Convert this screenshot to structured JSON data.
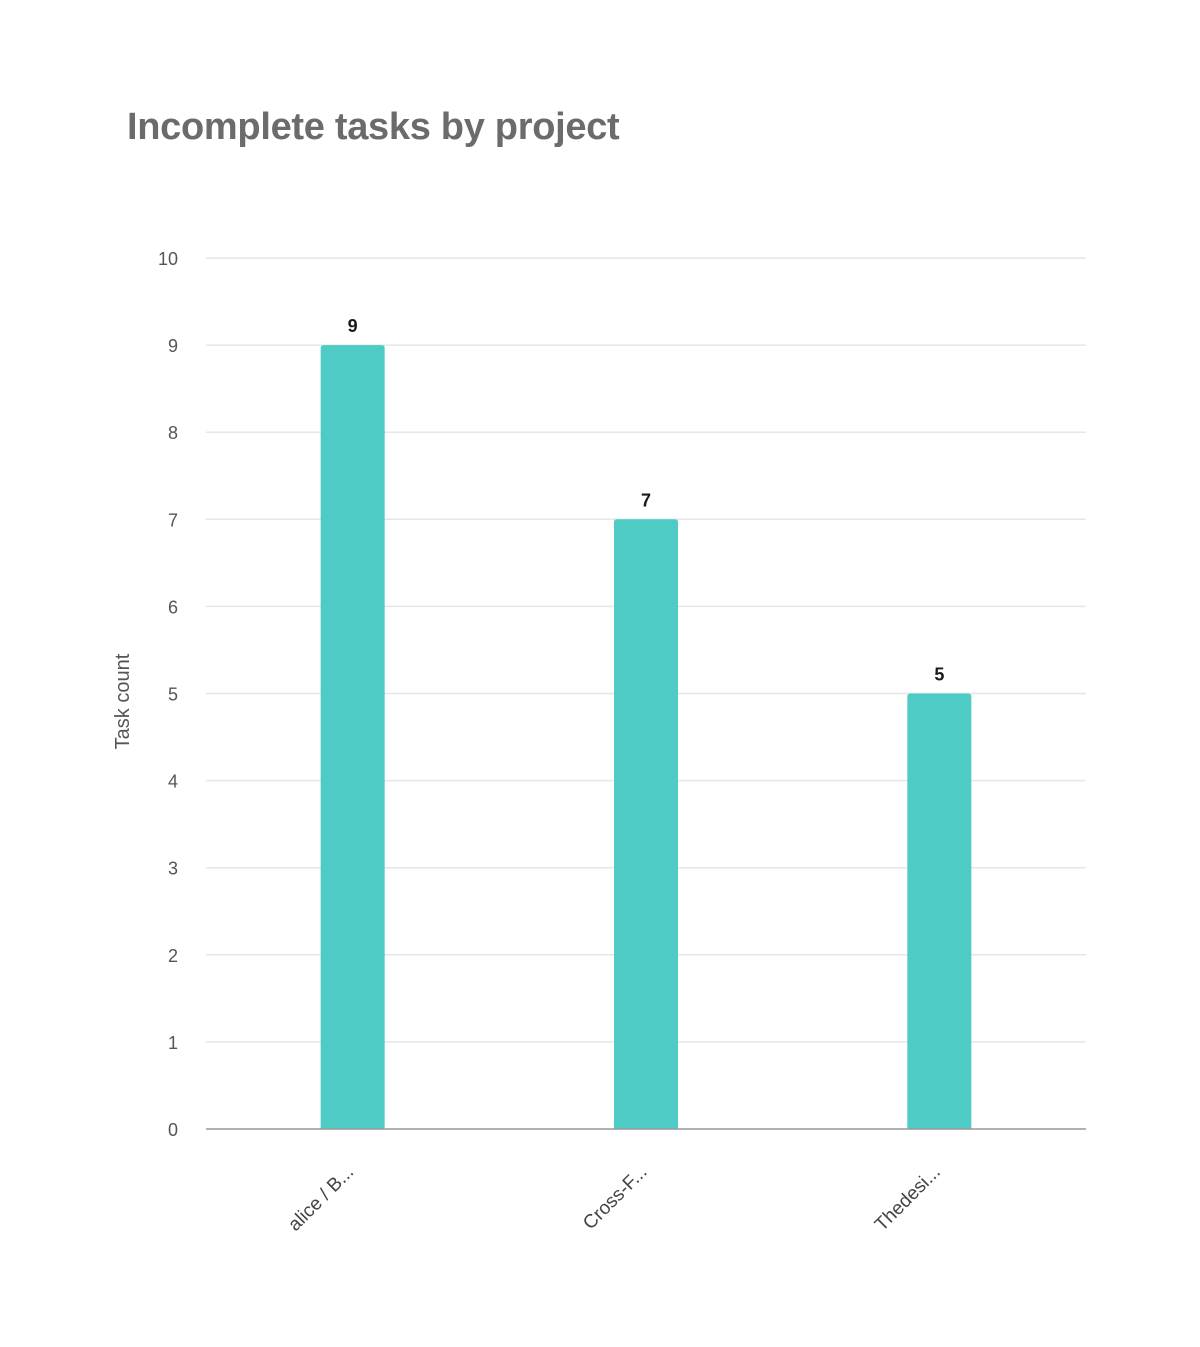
{
  "chart_data": {
    "type": "bar",
    "title": "Incomplete tasks by project",
    "xlabel": "",
    "ylabel": "Task count",
    "categories": [
      "alice / B...",
      "Cross-F...",
      "Thedesi..."
    ],
    "values": [
      9,
      7,
      5
    ],
    "ylim": [
      0,
      10
    ],
    "yticks": [
      "0",
      "1",
      "2",
      "3",
      "4",
      "5",
      "6",
      "7",
      "8",
      "9",
      "10"
    ],
    "grid": true,
    "legend": "none",
    "colors": {
      "bar": "#4ecbc4",
      "grid": "#e6e6e6",
      "axis": "#999999"
    }
  }
}
